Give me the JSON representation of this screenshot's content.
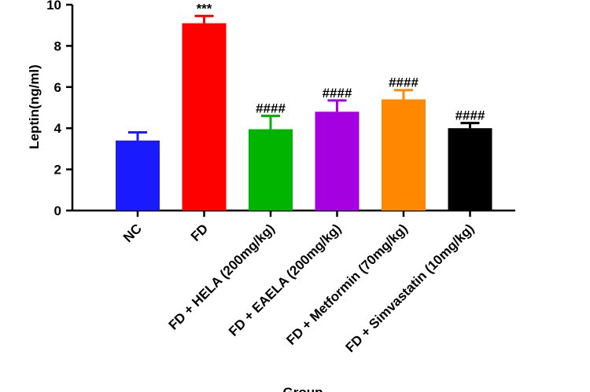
{
  "chart_data": {
    "type": "bar",
    "title": "",
    "xlabel": "Group",
    "ylabel": "Leptin(ng/ml)",
    "ylim": [
      0,
      10
    ],
    "yticks": [
      0,
      2,
      4,
      6,
      8,
      10
    ],
    "categories": [
      "NC",
      "FD",
      "FD + HELA (200mg/kg)",
      "FD + EAELA (200mg/kg)",
      "FD + Metformin (70mg/kg)",
      "FD + Simvastatin (10mg/kg)"
    ],
    "values": [
      3.4,
      9.1,
      3.95,
      4.8,
      5.4,
      4.0
    ],
    "errors": [
      0.4,
      0.35,
      0.65,
      0.55,
      0.45,
      0.25
    ],
    "colors": [
      "#1a1aff",
      "#ff0000",
      "#00b400",
      "#a400e0",
      "#ff8800",
      "#000000"
    ],
    "significance": [
      "",
      "***",
      "####",
      "####",
      "####",
      "####"
    ]
  }
}
